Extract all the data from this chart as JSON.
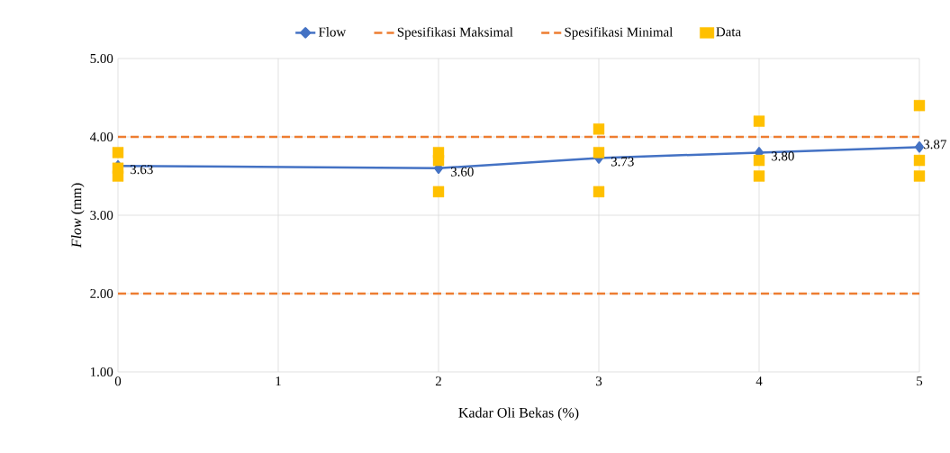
{
  "chart_data": {
    "type": "line",
    "xlabel": "Kadar Oli Bekas (%)",
    "ylabel": "*Flow* (mm)",
    "xlim": [
      0,
      5
    ],
    "xticks": [
      0,
      1,
      2,
      3,
      4,
      5
    ],
    "ylim": [
      1,
      5
    ],
    "yticks": [
      {
        "value": 1,
        "label": "1.00"
      },
      {
        "value": 2,
        "label": "2.00"
      },
      {
        "value": 3,
        "label": "3.00"
      },
      {
        "value": 4,
        "label": "4.00"
      },
      {
        "value": 5,
        "label": "5.00"
      }
    ],
    "grid": true,
    "legend": "top",
    "series": [
      {
        "name": "Flow",
        "color": "#4472c4",
        "marker": "diamond",
        "line_style": "solid",
        "x": [
          0,
          2,
          3,
          4,
          5
        ],
        "values": [
          3.63,
          3.6,
          3.73,
          3.8,
          3.87
        ],
        "value_labels": [
          "3.63",
          "3.60",
          "3.73",
          "3.80",
          "3.87"
        ]
      },
      {
        "name": "Spesifikasi Maksimal",
        "color": "#ed7d31",
        "marker": "none",
        "line_style": "dashed",
        "x": [
          0,
          5
        ],
        "values": [
          4,
          4
        ]
      },
      {
        "name": "Spesifikasi Minimal",
        "color": "#ed7d31",
        "marker": "none",
        "line_style": "dashed",
        "x": [
          0,
          5
        ],
        "values": [
          2,
          2
        ]
      },
      {
        "name": "Data",
        "type": "scatter",
        "color": "#ffc000",
        "marker": "square",
        "x": [
          0,
          0,
          0,
          2,
          2,
          2,
          3,
          3,
          3,
          4,
          4,
          4,
          5,
          5,
          5
        ],
        "values": [
          3.8,
          3.6,
          3.5,
          3.8,
          3.7,
          3.3,
          4.1,
          3.8,
          3.3,
          4.2,
          3.7,
          3.5,
          4.4,
          3.7,
          3.5
        ]
      }
    ]
  }
}
